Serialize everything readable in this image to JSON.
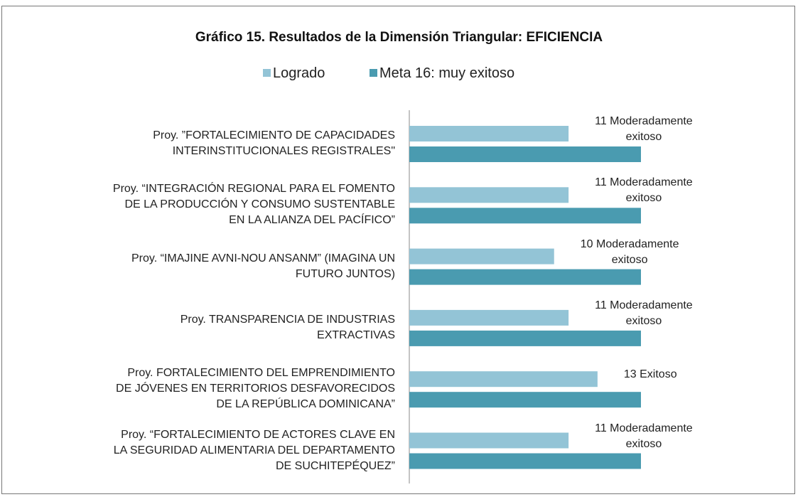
{
  "chart_data": {
    "type": "bar",
    "orientation": "horizontal",
    "title": "Gráfico 15. Resultados de la Dimensión Triangular: EFICIENCIA",
    "categories": [
      "Proy. ”FORTALECIMIENTO DE CAPACIDADES\nINTERINSTITUCIONALES REGISTRALES\"",
      "Proy. “INTEGRACIÓN REGIONAL PARA EL FOMENTO\nDE LA PRODUCCIÓN Y CONSUMO SUSTENTABLE\nEN LA ALIANZA DEL PACÍFICO”",
      "Proy. “IMAJINE AVNI-NOU ANSANM” (IMAGINA UN\nFUTURO JUNTOS)",
      "Proy. TRANSPARENCIA DE INDUSTRIAS\nEXTRACTIVAS",
      "Proy. FORTALECIMIENTO DEL EMPRENDIMIENTO\nDE JÓVENES EN TERRITORIOS DESFAVORECIDOS\nDE LA REPÚBLICA DOMINICANA”",
      "Proy. “FORTALECIMIENTO DE ACTORES CLAVE EN\nLA SEGURIDAD ALIMENTARIA DEL DEPARTAMENTO\nDE SUCHITEPÉQUEZ”"
    ],
    "series": [
      {
        "name": "Logrado",
        "color": "#93c4d6",
        "values": [
          11,
          11,
          10,
          11,
          13,
          11
        ],
        "value_labels": [
          "11 Moderadamente\nexitoso",
          "11 Moderadamente\nexitoso",
          "10 Moderadamente\nexitoso",
          "11 Moderadamente\nexitoso",
          "13 Exitoso",
          "11 Moderadamente\nexitoso"
        ]
      },
      {
        "name": "Meta 16: muy exitoso",
        "color": "#4a9bb0",
        "values": [
          16,
          16,
          16,
          16,
          16,
          16
        ]
      }
    ],
    "xlim": [
      0,
      16
    ],
    "legend": "top"
  }
}
